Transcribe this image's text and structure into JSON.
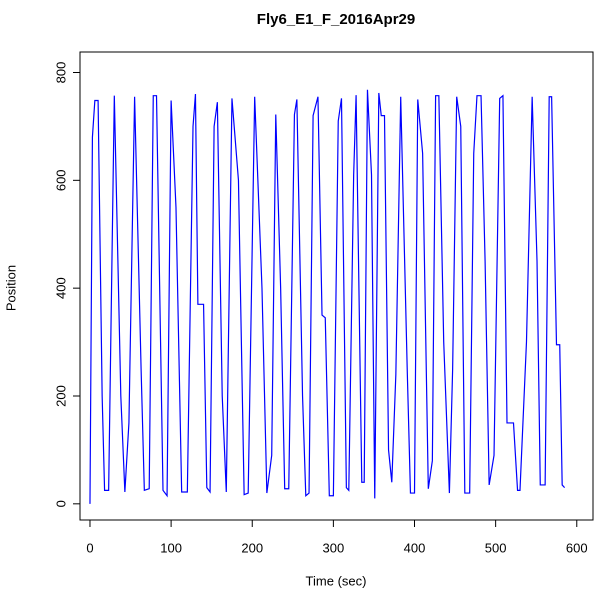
{
  "chart_data": {
    "type": "line",
    "title": "Fly6_E1_F_2016Apr29",
    "x_label": "Time (sec)",
    "y_label": "Position",
    "xlim": [
      -12.3,
      620
    ],
    "ylim": [
      -30,
      838
    ],
    "xticks": [
      0,
      100,
      200,
      300,
      400,
      500,
      600
    ],
    "yticks": [
      0,
      200,
      400,
      600,
      800
    ],
    "series": [
      {
        "name": "Position",
        "color": "#0000ff",
        "x": [
          0,
          3,
          6,
          10,
          15,
          18,
          23,
          30,
          38,
          43,
          48,
          55,
          63,
          67,
          73,
          78,
          82,
          87,
          90,
          95,
          100,
          106,
          113,
          120,
          127,
          130,
          133,
          140,
          144,
          148,
          153,
          157,
          163,
          168,
          175,
          183,
          190,
          195,
          203,
          212,
          218,
          224,
          229,
          235,
          240,
          245,
          252,
          255,
          262,
          266,
          270,
          275,
          281,
          286,
          290,
          295,
          300,
          306,
          310,
          316,
          319,
          325,
          328,
          335,
          338,
          342,
          347,
          351,
          356,
          359,
          363,
          368,
          372,
          377,
          383,
          391,
          395,
          400,
          404,
          410,
          417,
          422,
          426,
          430,
          436,
          443,
          447,
          452,
          457,
          462,
          468,
          473,
          477,
          482,
          487,
          492,
          498,
          505,
          509,
          514,
          522,
          527,
          530,
          538,
          545,
          551,
          555,
          561,
          566,
          569,
          575,
          579,
          582,
          585
        ],
        "values": [
          0,
          680,
          748,
          748,
          200,
          25,
          25,
          757,
          200,
          22,
          150,
          755,
          250,
          25,
          28,
          757,
          757,
          300,
          25,
          15,
          748,
          550,
          22,
          22,
          700,
          760,
          370,
          370,
          30,
          22,
          700,
          745,
          200,
          22,
          752,
          600,
          17,
          20,
          755,
          400,
          20,
          90,
          722,
          400,
          28,
          28,
          722,
          750,
          200,
          15,
          20,
          720,
          755,
          350,
          345,
          15,
          15,
          710,
          752,
          30,
          25,
          610,
          758,
          40,
          40,
          768,
          610,
          10,
          762,
          720,
          720,
          100,
          40,
          240,
          755,
          250,
          20,
          20,
          750,
          650,
          28,
          80,
          757,
          757,
          300,
          20,
          250,
          755,
          700,
          20,
          20,
          650,
          757,
          757,
          450,
          35,
          90,
          752,
          757,
          150,
          150,
          25,
          25,
          300,
          755,
          450,
          35,
          35,
          755,
          755,
          295,
          295,
          35,
          30
        ]
      }
    ]
  }
}
